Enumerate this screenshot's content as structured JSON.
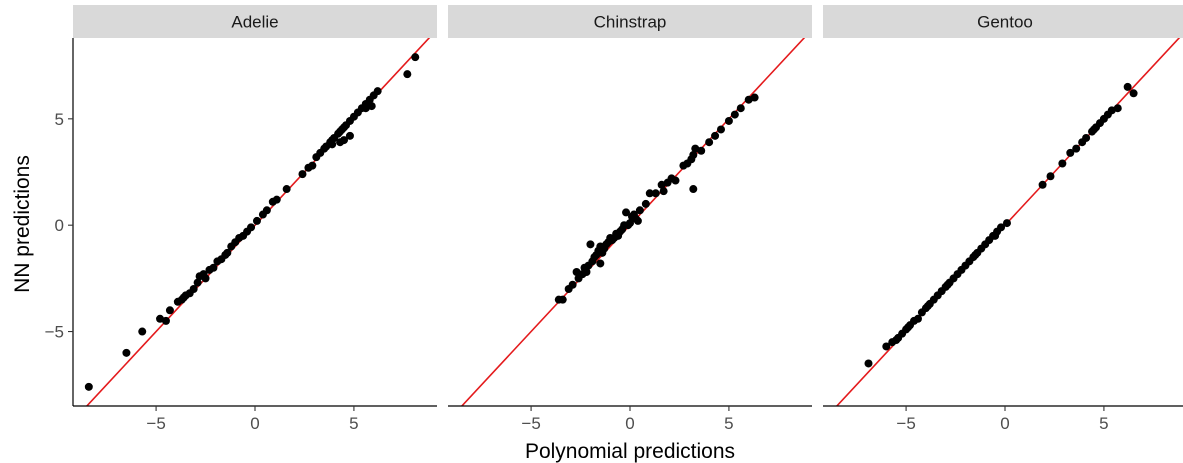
{
  "chart_data": {
    "type": "scatter",
    "xlabel": "Polynomial predictions",
    "ylabel": "NN predictions",
    "xlim": [
      -9.2,
      9.2
    ],
    "ylim": [
      -8.5,
      8.8
    ],
    "x_ticks": [
      -5,
      0,
      5
    ],
    "y_ticks": [
      -5,
      0,
      5
    ],
    "grid": false,
    "reference_line": {
      "slope": 1,
      "intercept": 0,
      "color": "#e41a1c"
    },
    "point_color": "#000000",
    "panels": [
      {
        "name": "Adelie",
        "points": [
          [
            -8.4,
            -7.6
          ],
          [
            -6.5,
            -6.0
          ],
          [
            -5.7,
            -5.0
          ],
          [
            -4.8,
            -4.4
          ],
          [
            -4.5,
            -4.5
          ],
          [
            -4.3,
            -4.0
          ],
          [
            -3.9,
            -3.6
          ],
          [
            -3.7,
            -3.5
          ],
          [
            -3.5,
            -3.3
          ],
          [
            -3.3,
            -3.2
          ],
          [
            -3.1,
            -3.0
          ],
          [
            -2.9,
            -2.7
          ],
          [
            -2.8,
            -2.4
          ],
          [
            -2.6,
            -2.3
          ],
          [
            -2.5,
            -2.5
          ],
          [
            -2.3,
            -2.1
          ],
          [
            -2.1,
            -2.0
          ],
          [
            -1.9,
            -1.7
          ],
          [
            -1.7,
            -1.6
          ],
          [
            -1.5,
            -1.4
          ],
          [
            -1.2,
            -1.0
          ],
          [
            -1.0,
            -0.8
          ],
          [
            -0.8,
            -0.6
          ],
          [
            -0.6,
            -0.5
          ],
          [
            -0.4,
            -0.3
          ],
          [
            -0.2,
            -0.1
          ],
          [
            0.1,
            0.2
          ],
          [
            0.4,
            0.5
          ],
          [
            0.9,
            1.1
          ],
          [
            1.1,
            1.2
          ],
          [
            1.6,
            1.7
          ],
          [
            2.4,
            2.4
          ],
          [
            2.7,
            2.7
          ],
          [
            2.9,
            2.8
          ],
          [
            3.1,
            3.2
          ],
          [
            3.3,
            3.4
          ],
          [
            3.5,
            3.6
          ],
          [
            3.6,
            3.7
          ],
          [
            3.8,
            3.9
          ],
          [
            3.9,
            4.0
          ],
          [
            4.0,
            4.1
          ],
          [
            4.2,
            4.3
          ],
          [
            4.3,
            4.4
          ],
          [
            4.4,
            4.5
          ],
          [
            4.5,
            4.6
          ],
          [
            4.6,
            4.7
          ],
          [
            4.8,
            4.9
          ],
          [
            5.0,
            5.1
          ],
          [
            5.2,
            5.3
          ],
          [
            5.4,
            5.5
          ],
          [
            5.6,
            5.7
          ],
          [
            5.8,
            5.9
          ],
          [
            6.0,
            6.1
          ],
          [
            6.2,
            6.3
          ],
          [
            4.3,
            3.9
          ],
          [
            4.5,
            4.0
          ],
          [
            3.9,
            3.8
          ],
          [
            4.8,
            4.2
          ],
          [
            5.6,
            5.5
          ],
          [
            7.7,
            7.1
          ],
          [
            8.1,
            7.9
          ],
          [
            -1.4,
            -1.3
          ],
          [
            -3.6,
            -3.4
          ],
          [
            0.6,
            0.7
          ],
          [
            5.9,
            5.6
          ]
        ]
      },
      {
        "name": "Chinstrap",
        "points": [
          [
            -3.6,
            -3.5
          ],
          [
            -3.4,
            -3.5
          ],
          [
            -3.1,
            -3.0
          ],
          [
            -2.9,
            -2.8
          ],
          [
            -2.7,
            -2.2
          ],
          [
            -2.6,
            -2.5
          ],
          [
            -2.4,
            -2.3
          ],
          [
            -2.3,
            -2.0
          ],
          [
            -2.2,
            -2.2
          ],
          [
            -2.1,
            -1.9
          ],
          [
            -2.0,
            -0.9
          ],
          [
            -1.9,
            -1.7
          ],
          [
            -1.8,
            -1.5
          ],
          [
            -1.7,
            -1.4
          ],
          [
            -1.6,
            -1.2
          ],
          [
            -1.5,
            -1.0
          ],
          [
            -1.4,
            -1.3
          ],
          [
            -1.3,
            -1.1
          ],
          [
            -1.2,
            -0.9
          ],
          [
            -1.1,
            -0.8
          ],
          [
            -1.0,
            -0.6
          ],
          [
            -0.9,
            -0.7
          ],
          [
            -0.8,
            -0.6
          ],
          [
            -0.7,
            -0.4
          ],
          [
            -0.6,
            -0.5
          ],
          [
            -0.5,
            -0.3
          ],
          [
            -0.4,
            -0.2
          ],
          [
            -0.3,
            0.0
          ],
          [
            -0.2,
            0.6
          ],
          [
            -0.1,
            0.0
          ],
          [
            0.0,
            0.1
          ],
          [
            0.1,
            0.4
          ],
          [
            0.2,
            0.5
          ],
          [
            0.3,
            0.3
          ],
          [
            0.5,
            0.7
          ],
          [
            0.8,
            1.0
          ],
          [
            1.0,
            1.5
          ],
          [
            1.3,
            1.5
          ],
          [
            1.6,
            1.9
          ],
          [
            1.9,
            2.0
          ],
          [
            2.1,
            2.2
          ],
          [
            2.7,
            2.8
          ],
          [
            2.9,
            2.9
          ],
          [
            3.1,
            3.1
          ],
          [
            3.2,
            3.3
          ],
          [
            3.3,
            3.6
          ],
          [
            3.2,
            1.7
          ],
          [
            3.6,
            3.5
          ],
          [
            4.0,
            3.9
          ],
          [
            4.3,
            4.2
          ],
          [
            4.6,
            4.5
          ],
          [
            5.0,
            4.9
          ],
          [
            5.3,
            5.2
          ],
          [
            5.6,
            5.5
          ],
          [
            6.0,
            5.9
          ],
          [
            6.3,
            6.0
          ],
          [
            -1.5,
            -1.8
          ],
          [
            0.4,
            0.2
          ],
          [
            2.3,
            2.1
          ],
          [
            1.7,
            1.6
          ]
        ]
      },
      {
        "name": "Gentoo",
        "points": [
          [
            -6.9,
            -6.5
          ],
          [
            -6.0,
            -5.7
          ],
          [
            -5.7,
            -5.5
          ],
          [
            -5.4,
            -5.3
          ],
          [
            -5.2,
            -5.1
          ],
          [
            -5.0,
            -4.9
          ],
          [
            -4.8,
            -4.7
          ],
          [
            -4.6,
            -4.5
          ],
          [
            -4.4,
            -4.4
          ],
          [
            -4.2,
            -4.1
          ],
          [
            -4.0,
            -3.9
          ],
          [
            -3.8,
            -3.7
          ],
          [
            -3.6,
            -3.5
          ],
          [
            -3.4,
            -3.3
          ],
          [
            -3.2,
            -3.1
          ],
          [
            -3.0,
            -2.9
          ],
          [
            -2.8,
            -2.7
          ],
          [
            -2.6,
            -2.5
          ],
          [
            -2.4,
            -2.3
          ],
          [
            -2.2,
            -2.1
          ],
          [
            -2.0,
            -1.9
          ],
          [
            -1.8,
            -1.7
          ],
          [
            -1.6,
            -1.5
          ],
          [
            -1.4,
            -1.3
          ],
          [
            -1.2,
            -1.1
          ],
          [
            -1.0,
            -0.9
          ],
          [
            -0.8,
            -0.7
          ],
          [
            -0.6,
            -0.5
          ],
          [
            -0.4,
            -0.3
          ],
          [
            -0.2,
            -0.1
          ],
          [
            0.1,
            0.1
          ],
          [
            1.9,
            1.9
          ],
          [
            2.3,
            2.3
          ],
          [
            2.9,
            2.9
          ],
          [
            3.3,
            3.4
          ],
          [
            3.6,
            3.6
          ],
          [
            3.9,
            3.9
          ],
          [
            4.1,
            4.1
          ],
          [
            4.4,
            4.4
          ],
          [
            4.6,
            4.6
          ],
          [
            4.8,
            4.8
          ],
          [
            5.0,
            5.0
          ],
          [
            5.2,
            5.2
          ],
          [
            5.4,
            5.4
          ],
          [
            5.7,
            5.5
          ],
          [
            6.2,
            6.5
          ],
          [
            6.5,
            6.2
          ],
          [
            -5.5,
            -5.4
          ],
          [
            -4.9,
            -4.8
          ],
          [
            -3.9,
            -3.8
          ],
          [
            -2.9,
            -2.8
          ],
          [
            -1.5,
            -1.4
          ],
          [
            -0.5,
            -0.5
          ],
          [
            4.5,
            4.5
          ]
        ]
      }
    ]
  }
}
